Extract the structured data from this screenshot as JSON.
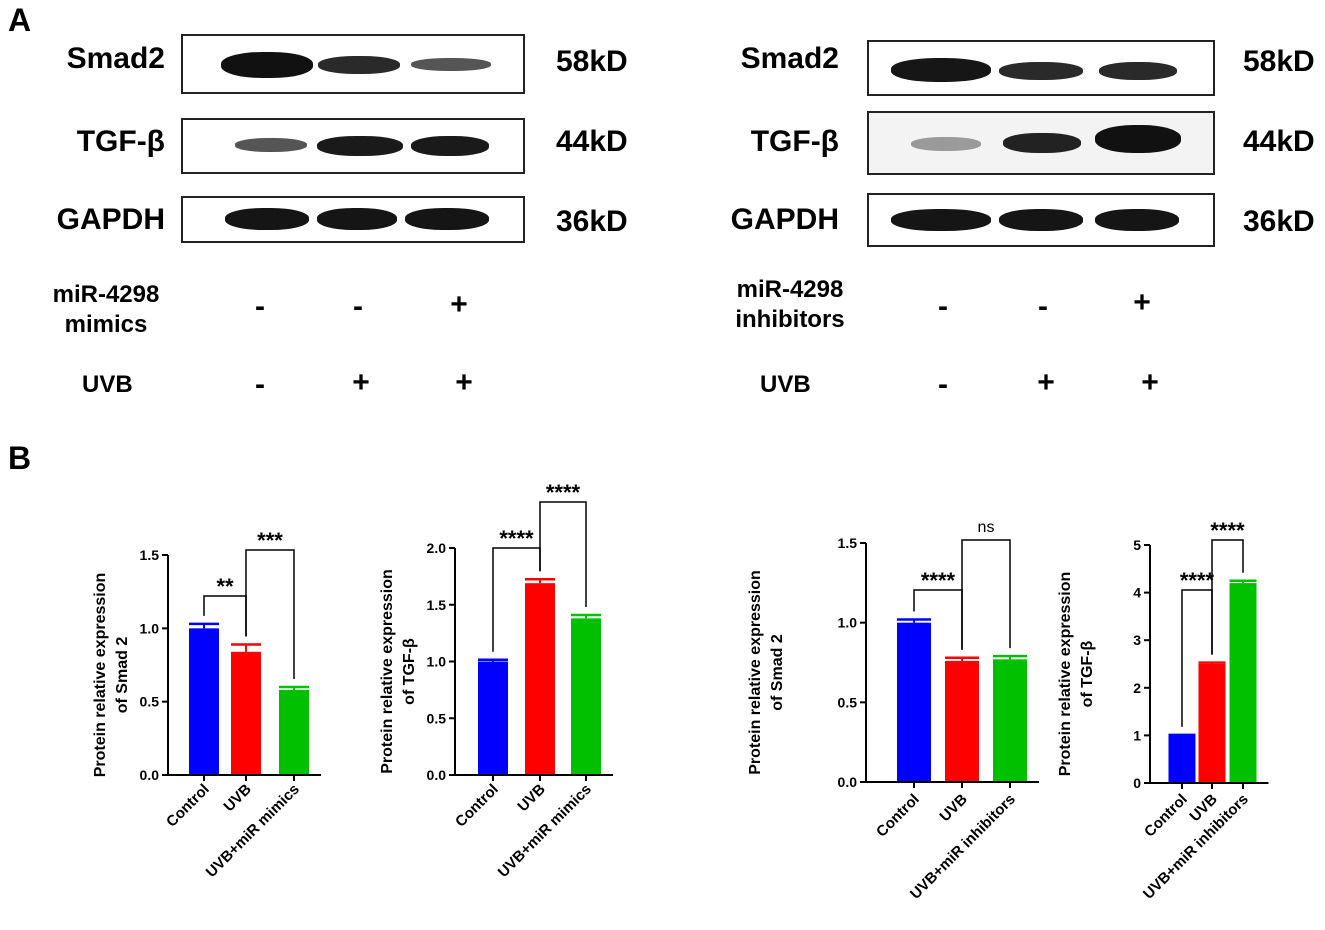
{
  "panels": {
    "a": "A",
    "b": "B"
  },
  "blots": [
    {
      "rows": [
        {
          "protein": "Smad2",
          "kd": "58kD"
        },
        {
          "protein": "TGF-β",
          "kd": "44kD"
        },
        {
          "protein": "GAPDH",
          "kd": "36kD"
        }
      ],
      "treatment_line1": "miR-4298",
      "treatment_line2": "mimics",
      "treatment_signs": [
        "-",
        "-",
        "+"
      ],
      "uvb_label": "UVB",
      "uvb_signs": [
        "-",
        "+",
        "+"
      ]
    },
    {
      "rows": [
        {
          "protein": "Smad2",
          "kd": "58kD"
        },
        {
          "protein": "TGF-β",
          "kd": "44kD"
        },
        {
          "protein": "GAPDH",
          "kd": "36kD"
        }
      ],
      "treatment_line1": "miR-4298",
      "treatment_line2": "inhibitors",
      "treatment_signs": [
        "-",
        "-",
        "+"
      ],
      "uvb_label": "UVB",
      "uvb_signs": [
        "-",
        "+",
        "+"
      ]
    }
  ],
  "colors": {
    "control": "#0000ff",
    "uvb": "#ff0000",
    "treated": "#00c000"
  },
  "chart_data": [
    {
      "type": "bar",
      "categories": [
        "Control",
        "UVB",
        "UVB+miR mimics"
      ],
      "values": [
        1.0,
        0.84,
        0.58
      ],
      "errors": [
        0.03,
        0.05,
        0.02
      ],
      "ylabel_line1": "Protein relative expression",
      "ylabel_line2": "of Smad 2",
      "ylim": [
        0,
        1.5
      ],
      "yticks": [
        "0.0",
        "0.5",
        "1.0",
        "1.5"
      ],
      "comparisons": [
        {
          "from": 0,
          "to": 1,
          "label": "**"
        },
        {
          "from": 1,
          "to": 2,
          "label": "***"
        }
      ]
    },
    {
      "type": "bar",
      "categories": [
        "Control",
        "UVB",
        "UVB+miR mimics"
      ],
      "values": [
        1.0,
        1.69,
        1.38
      ],
      "errors": [
        0.015,
        0.035,
        0.03
      ],
      "ylabel_line1": "Protein relative expression",
      "ylabel_line2": "of TGF-β",
      "ylim": [
        0,
        2.0
      ],
      "yticks": [
        "0.0",
        "0.5",
        "1.0",
        "1.5",
        "2.0"
      ],
      "comparisons": [
        {
          "from": 0,
          "to": 1,
          "label": "****"
        },
        {
          "from": 1,
          "to": 2,
          "label": "****"
        }
      ]
    },
    {
      "type": "bar",
      "categories": [
        "Control",
        "UVB",
        "UVB+miR inhibitors"
      ],
      "values": [
        1.0,
        0.76,
        0.77
      ],
      "errors": [
        0.02,
        0.02,
        0.02
      ],
      "ylabel_line1": "Protein relative expression",
      "ylabel_line2": "of Smad 2",
      "ylim": [
        0,
        1.5
      ],
      "yticks": [
        "0.0",
        "0.5",
        "1.0",
        "1.5"
      ],
      "comparisons": [
        {
          "from": 0,
          "to": 1,
          "label": "****"
        },
        {
          "from": 1,
          "to": 2,
          "label": "ns"
        }
      ]
    },
    {
      "type": "bar",
      "categories": [
        "Control",
        "UVB",
        "UVB+miR inhibitors"
      ],
      "values": [
        1.0,
        2.5,
        4.2
      ],
      "errors": [
        0.01,
        0.03,
        0.05
      ],
      "ylabel_line1": "Protein relative expression",
      "ylabel_line2": "of TGF-β",
      "ylim": [
        0,
        5
      ],
      "yticks": [
        "0",
        "1",
        "2",
        "3",
        "4",
        "5"
      ],
      "comparisons": [
        {
          "from": 0,
          "to": 1,
          "label": "****"
        },
        {
          "from": 1,
          "to": 2,
          "label": "****"
        }
      ]
    }
  ]
}
